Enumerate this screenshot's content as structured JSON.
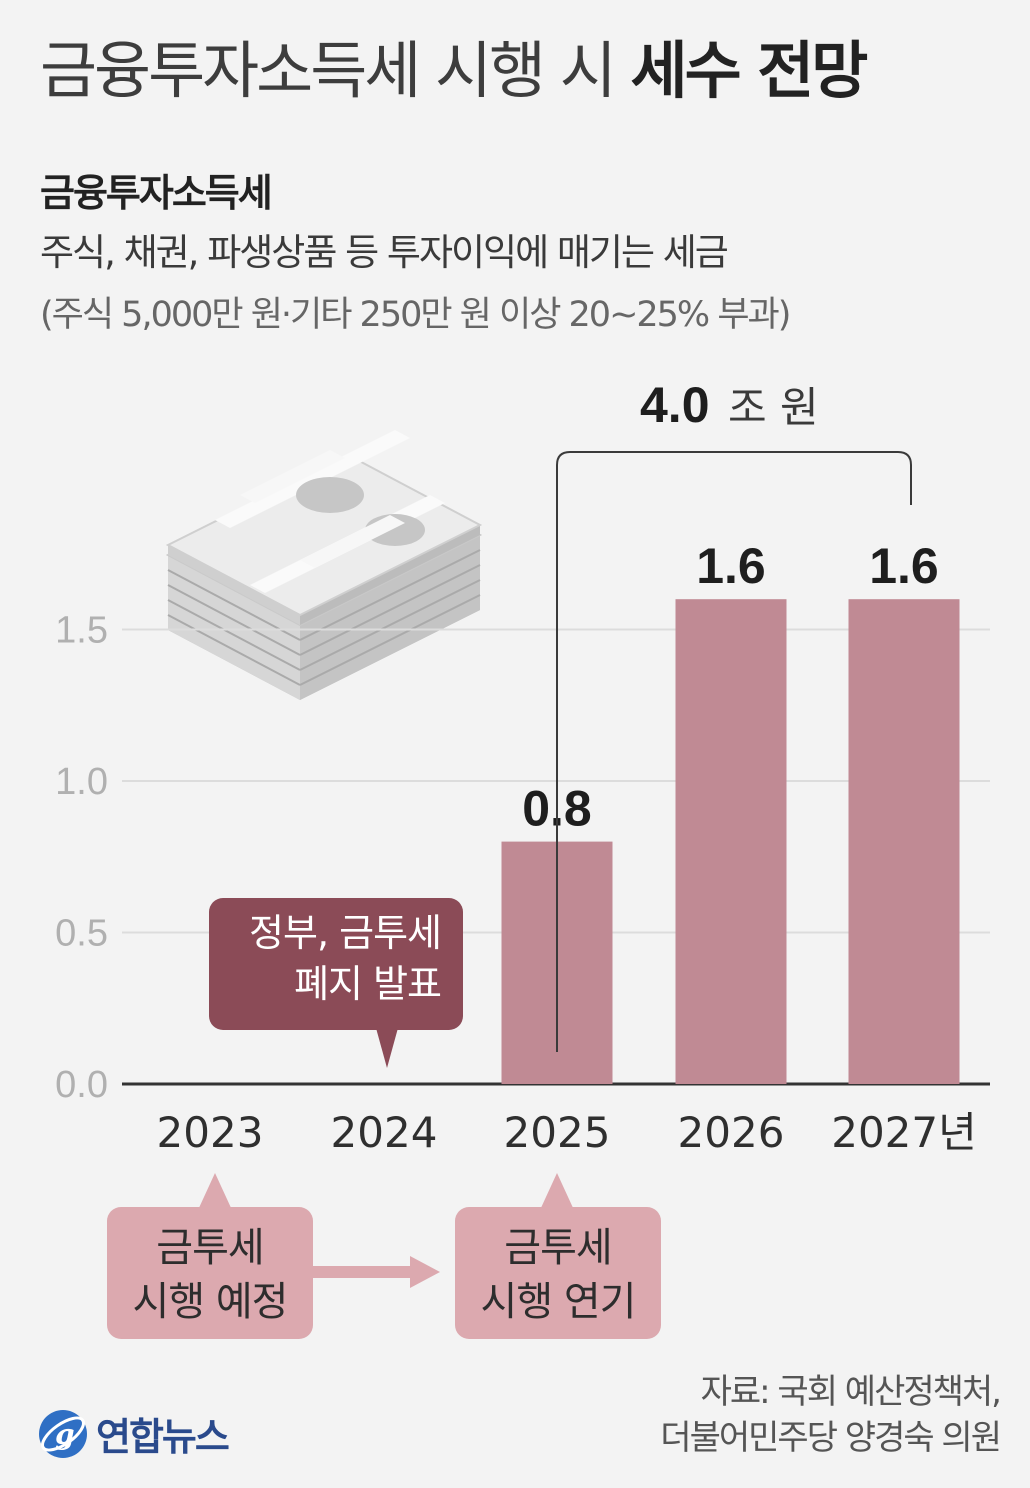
{
  "header": {
    "title_light": "금융투자소득세 시행 시",
    "title_bold": "세수 전망",
    "subtitle": "금융투자소득세",
    "description": "주식, 채권, 파생상품 등 투자이익에 매기는 세금",
    "description_note": "(주식 5,000만 원·기타 250만 원 이상 20~25% 부과)"
  },
  "chart_data": {
    "type": "bar",
    "categories": [
      "2023",
      "2024",
      "2025",
      "2026",
      "2027년"
    ],
    "values": [
      null,
      null,
      0.8,
      1.6,
      1.6
    ],
    "value_labels": [
      "",
      "",
      "0.8",
      "1.6",
      "1.6"
    ],
    "ylim": [
      0,
      1.6
    ],
    "yticks": [
      "0.0",
      "0.5",
      "1.0",
      "1.5"
    ],
    "grid": true,
    "bar_color": "#c08a94",
    "total_annotation": {
      "value": "4.0",
      "unit": "조 원"
    }
  },
  "callouts": {
    "gov_announcement": [
      "정부, 금투세",
      "폐지 발표"
    ],
    "planned": [
      "금투세",
      "시행 예정"
    ],
    "postponed": [
      "금투세",
      "시행 연기"
    ]
  },
  "source": [
    "자료: 국회 예산정책처,",
    "더불어민주당 양경숙 의원"
  ],
  "logo": {
    "text": "연합뉴스"
  },
  "colors": {
    "bar": "#c08a94",
    "callout_dark": "#8b4b57",
    "callout_light": "#dca9af",
    "background": "#f3f3f3"
  }
}
